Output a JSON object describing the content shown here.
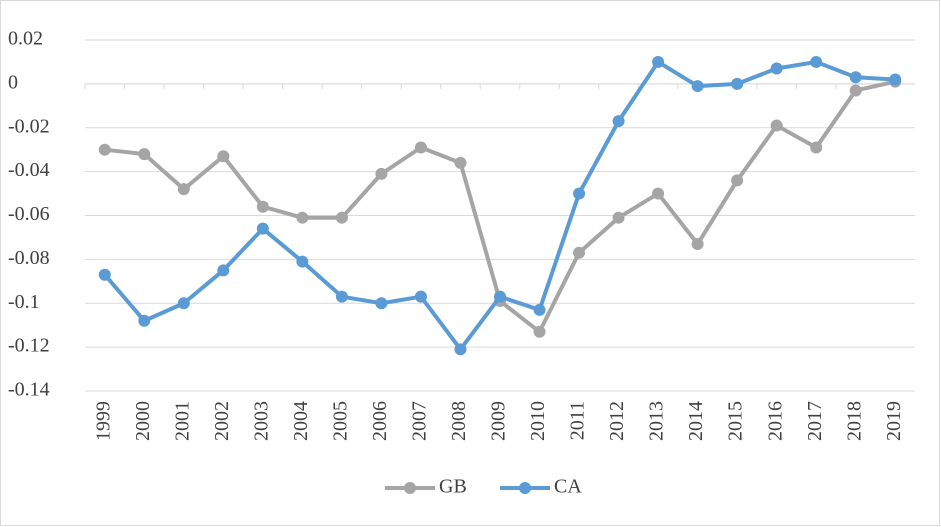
{
  "chart_data": {
    "type": "line",
    "categories": [
      "1999",
      "2000",
      "2001",
      "2002",
      "2003",
      "2004",
      "2005",
      "2006",
      "2007",
      "2008",
      "2009",
      "2010",
      "2011",
      "2012",
      "2013",
      "2014",
      "2015",
      "2016",
      "2017",
      "2018",
      "2019"
    ],
    "series": [
      {
        "name": "GB",
        "color": "#a5a5a5",
        "values": [
          -0.03,
          -0.032,
          -0.048,
          -0.033,
          -0.056,
          -0.061,
          -0.061,
          -0.041,
          -0.029,
          -0.036,
          -0.099,
          -0.113,
          -0.077,
          -0.061,
          -0.05,
          -0.073,
          -0.044,
          -0.019,
          -0.029,
          -0.003,
          0.001
        ]
      },
      {
        "name": "CA",
        "color": "#5b9bd5",
        "values": [
          -0.087,
          -0.108,
          -0.1,
          -0.085,
          -0.066,
          -0.081,
          -0.097,
          -0.1,
          -0.097,
          -0.121,
          -0.097,
          -0.103,
          -0.05,
          -0.017,
          0.01,
          -0.001,
          0,
          0.007,
          0.01,
          0.003,
          0.002
        ]
      }
    ],
    "ylim": [
      -0.14,
      0.02
    ],
    "yticks": [
      -0.14,
      -0.12,
      -0.1,
      -0.08,
      -0.06,
      -0.04,
      -0.02,
      0,
      0.02
    ],
    "grid": true,
    "legend": "bottom"
  }
}
